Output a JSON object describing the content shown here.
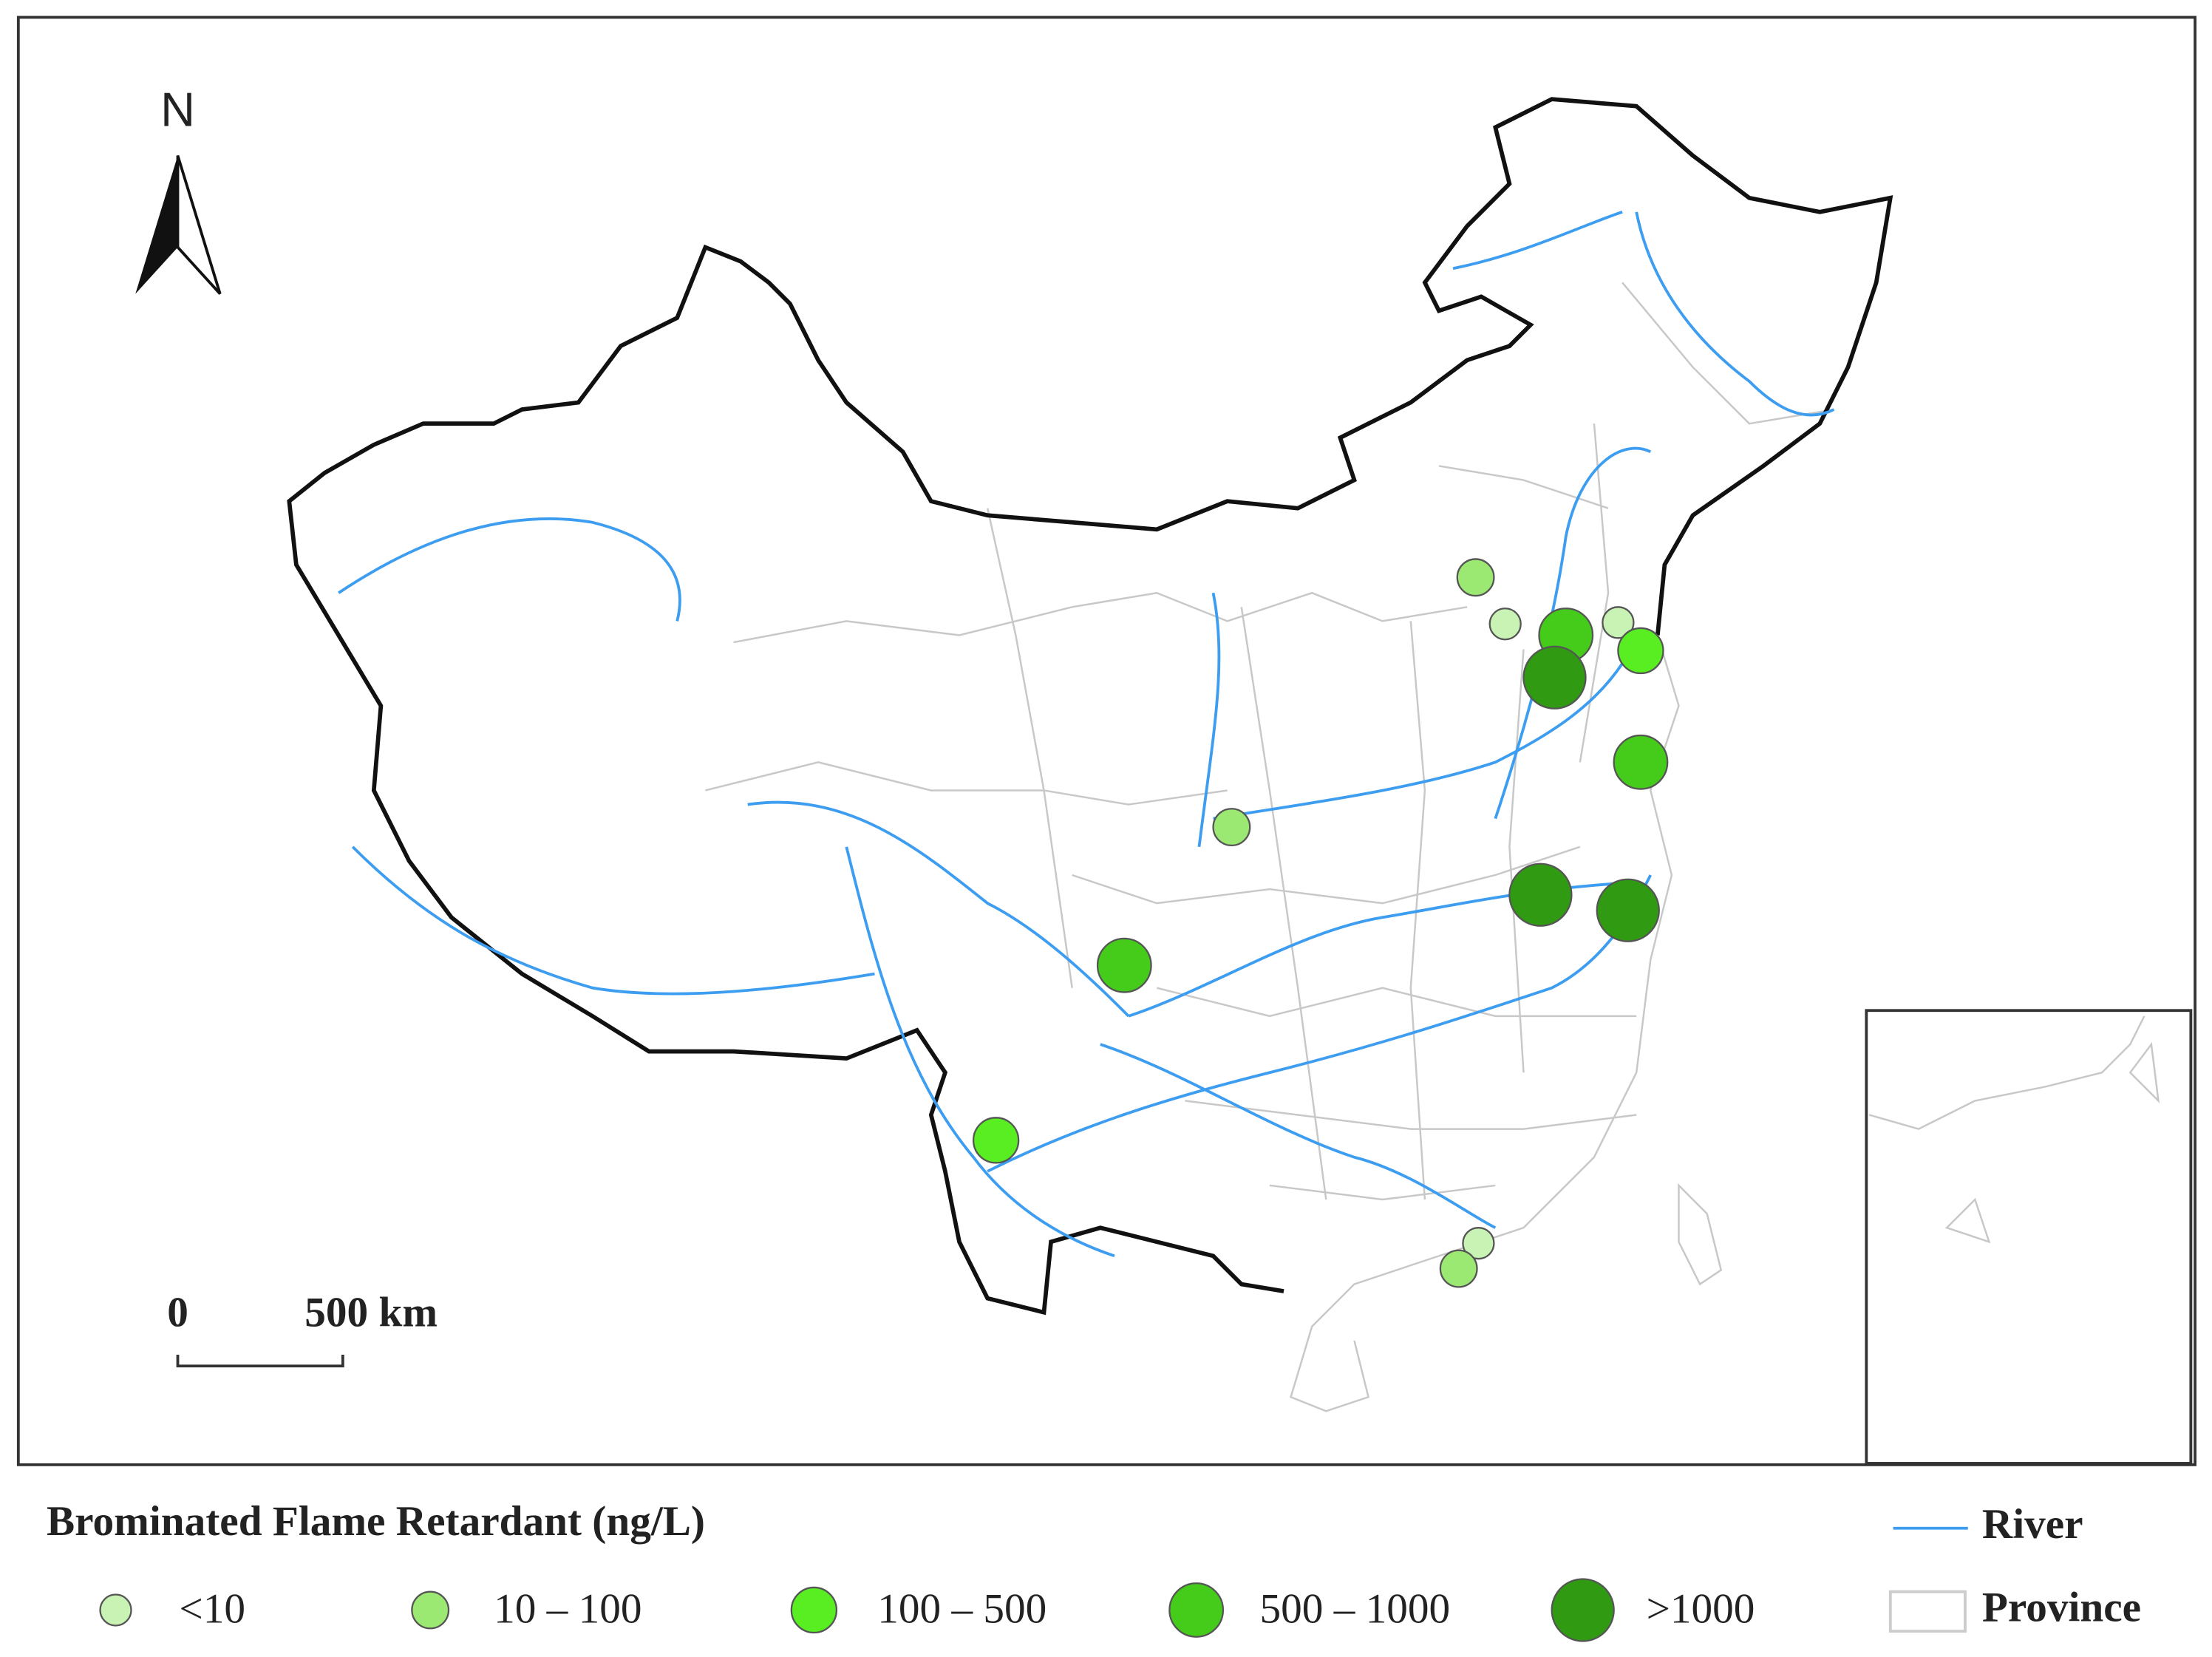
{
  "north": "N",
  "scale": {
    "zero": "0",
    "distance": "500 km"
  },
  "legend": {
    "title": "Brominated Flame Retardant (ng/L)",
    "classes": [
      {
        "label": "<10",
        "color": "#c9f3b4"
      },
      {
        "label": "10 – 100",
        "color": "#9be872"
      },
      {
        "label": "100 – 500",
        "color": "#58ee22"
      },
      {
        "label": "500 – 1000",
        "color": "#45cc1b"
      },
      {
        "label": ">1000",
        "color": "#2f9a12"
      }
    ],
    "river": "River",
    "province": "Province"
  }
}
